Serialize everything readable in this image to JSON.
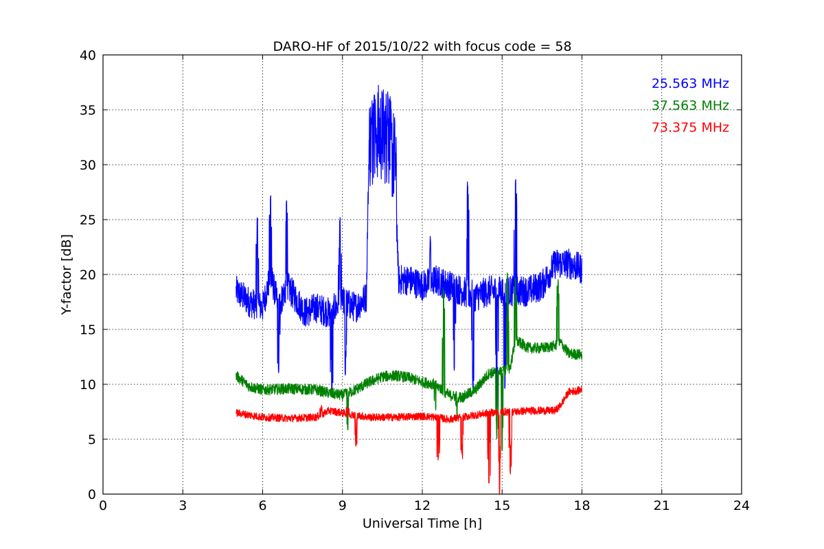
{
  "chart_data": {
    "type": "line",
    "title": "DARO-HF of 2015/10/22 with focus code = 58",
    "xlabel": "Universal Time [h]",
    "ylabel": "Y-factor [dB]",
    "xlim": [
      0,
      24
    ],
    "ylim": [
      0,
      40
    ],
    "xticks": [
      "0",
      "3",
      "6",
      "9",
      "12",
      "15",
      "18",
      "21",
      "24"
    ],
    "yticks": [
      "0",
      "5",
      "10",
      "15",
      "20",
      "25",
      "30",
      "35",
      "40"
    ],
    "grid": true,
    "legend_position": "top-right",
    "series": [
      {
        "name": "25.563 MHz",
        "color": "#0000ff",
        "x": [
          5.0,
          5.5,
          6.0,
          6.3,
          6.6,
          6.9,
          7.2,
          7.6,
          8.0,
          8.5,
          9.0,
          9.5,
          9.9,
          10.0,
          10.3,
          10.7,
          11.0,
          11.1,
          11.5,
          12.0,
          12.5,
          13.0,
          13.5,
          14.0,
          14.5,
          15.0,
          15.5,
          16.0,
          16.5,
          17.0,
          17.5,
          18.0
        ],
        "values": [
          18.5,
          17.5,
          17.0,
          20.0,
          17.0,
          19.0,
          18.0,
          16.5,
          17.0,
          16.5,
          17.5,
          17.0,
          18.0,
          32.0,
          33.0,
          32.5,
          30.0,
          19.5,
          19.5,
          19.0,
          19.5,
          19.0,
          18.5,
          18.0,
          18.5,
          18.5,
          18.5,
          18.5,
          19.0,
          21.0,
          21.0,
          20.5
        ],
        "spikes_max": [
          [
            5.8,
            25.3
          ],
          [
            6.3,
            27.2
          ],
          [
            6.9,
            27.0
          ],
          [
            8.9,
            25.2
          ],
          [
            10.2,
            36.5
          ],
          [
            10.7,
            36.7
          ],
          [
            12.3,
            23.5
          ],
          [
            13.7,
            28.6
          ],
          [
            15.5,
            28.7
          ]
        ],
        "spikes_min": [
          [
            6.6,
            11.0
          ],
          [
            8.6,
            8.8
          ],
          [
            9.1,
            10.8
          ],
          [
            13.2,
            11.2
          ],
          [
            13.9,
            9.5
          ],
          [
            14.8,
            7.8
          ],
          [
            15.1,
            9.6
          ]
        ]
      },
      {
        "name": "37.563 MHz",
        "color": "#008000",
        "x": [
          5.0,
          5.5,
          6.0,
          7.0,
          8.0,
          8.5,
          9.0,
          9.5,
          10.0,
          10.5,
          11.0,
          11.5,
          12.0,
          12.5,
          13.0,
          13.5,
          14.0,
          14.5,
          15.0,
          15.3,
          15.5,
          16.0,
          16.5,
          17.0,
          17.2,
          17.5,
          18.0
        ],
        "values": [
          10.8,
          9.8,
          9.5,
          9.6,
          9.5,
          9.2,
          9.0,
          9.5,
          10.2,
          10.7,
          10.8,
          10.6,
          10.2,
          10.0,
          9.0,
          8.8,
          9.5,
          11.0,
          11.2,
          11.5,
          14.0,
          13.3,
          13.3,
          13.5,
          13.8,
          12.8,
          12.7
        ],
        "spikes_max": [
          [
            12.8,
            18.8
          ],
          [
            15.2,
            20.2
          ],
          [
            15.5,
            19.8
          ],
          [
            17.1,
            19.8
          ]
        ],
        "spikes_min": [
          [
            9.2,
            5.8
          ],
          [
            12.5,
            7.5
          ],
          [
            13.3,
            7.0
          ],
          [
            14.8,
            5.0
          ],
          [
            15.0,
            3.8
          ]
        ]
      },
      {
        "name": "73.375 MHz",
        "color": "#ff0000",
        "x": [
          5.0,
          5.5,
          6.0,
          7.0,
          8.0,
          8.5,
          9.0,
          9.5,
          10.0,
          11.0,
          12.0,
          12.5,
          13.0,
          13.5,
          14.0,
          14.5,
          15.0,
          15.5,
          16.0,
          17.0,
          17.2,
          17.5,
          18.0
        ],
        "values": [
          7.4,
          7.2,
          7.0,
          6.9,
          7.0,
          7.6,
          7.4,
          7.2,
          7.0,
          7.0,
          7.1,
          7.0,
          6.8,
          7.0,
          7.2,
          7.4,
          7.5,
          7.5,
          7.6,
          7.6,
          8.1,
          9.3,
          9.5
        ],
        "spikes_max": [
          [
            8.2,
            8.2
          ],
          [
            9.2,
            8.0
          ]
        ],
        "spikes_min": [
          [
            9.5,
            4.2
          ],
          [
            12.6,
            3.0
          ],
          [
            13.5,
            3.2
          ],
          [
            14.5,
            1.0
          ],
          [
            14.9,
            0.0
          ],
          [
            15.3,
            1.8
          ]
        ]
      }
    ]
  }
}
